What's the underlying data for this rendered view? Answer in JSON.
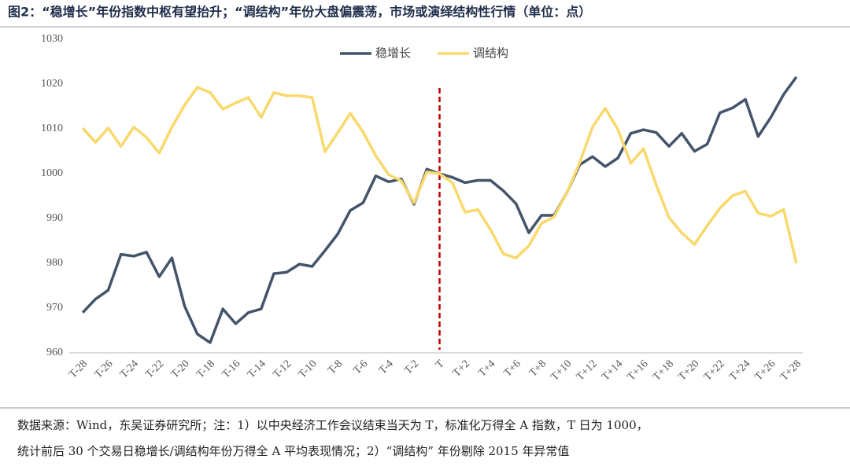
{
  "chart_data": {
    "type": "line",
    "title": "图2：“稳增长”年份指数中枢有望抬升；“调结构”年份大盘偏震荡，市场或演绎结构性行情（单位：点）",
    "source": [
      "数据来源：Wind，东吴证券研究所；注：1）以中央经济工作会议结束当天为 T，标准化万得全 A 指数，T 日为 1000，",
      "统计前后 30 个交易日稳增长/调结构年份万得全 A 平均表现情况；2）“调结构” 年份剔除 2015 年异常值"
    ],
    "categories": [
      "T-28",
      null,
      "T-26",
      null,
      "T-24",
      null,
      "T-22",
      null,
      "T-20",
      null,
      "T-18",
      null,
      "T-16",
      null,
      "T-14",
      null,
      "T-12",
      null,
      "T-10",
      null,
      "T-8",
      null,
      "T-6",
      null,
      "T-4",
      null,
      "T-2",
      null,
      "T",
      null,
      "T+2",
      null,
      "T+4",
      null,
      "T+6",
      null,
      "T+8",
      null,
      "T+10",
      null,
      "T+12",
      null,
      "T+14",
      null,
      "T+16",
      null,
      "T+18",
      null,
      "T+20",
      null,
      "T+22",
      null,
      "T+24",
      null,
      "T+26",
      null,
      "T+28"
    ],
    "series": [
      {
        "name": "稳增长",
        "color": "#44546a",
        "values": [
          969,
          972,
          974,
          982,
          981.6,
          982.5,
          977,
          981.2,
          970.4,
          964.2,
          962.3,
          969.8,
          966.5,
          969,
          969.8,
          977.7,
          978,
          979.8,
          979.3,
          982.8,
          986.5,
          991.8,
          993.5,
          999.5,
          998.2,
          998.8,
          993.2,
          1001,
          1000,
          999.2,
          998,
          998.5,
          998.5,
          996.2,
          993.3,
          986.8,
          990.7,
          990.7,
          995.8,
          1002,
          1003.8,
          1001.6,
          1003.5,
          1009,
          1009.8,
          1009.2,
          1006.1,
          1009,
          1005,
          1006.6,
          1013.6,
          1014.7,
          1016.6,
          1008.3,
          1012.6,
          1017.7,
          1021.6
        ]
      },
      {
        "name": "调结构",
        "color": "#f9d96b",
        "values": [
          1010.2,
          1007,
          1010.2,
          1006.1,
          1010.4,
          1008.1,
          1004.6,
          1010.4,
          1015.3,
          1019.3,
          1018.1,
          1014.4,
          1015.8,
          1017,
          1012.6,
          1018.1,
          1017.4,
          1017.4,
          1017,
          1004.9,
          1009.1,
          1013.5,
          1009.3,
          1004,
          999.8,
          998.4,
          993.5,
          1000.4,
          1000,
          998,
          991.4,
          992,
          987.5,
          982.1,
          981.2,
          983.9,
          988.9,
          990.4,
          995.8,
          1002.5,
          1010.4,
          1014.6,
          1009.8,
          1002.3,
          1005.6,
          997.5,
          990.2,
          986.8,
          984.2,
          988.4,
          992.3,
          995.1,
          996.1,
          991.2,
          990.5,
          992,
          980
        ]
      }
    ],
    "ylim": [
      960,
      1030
    ],
    "yticks": [
      960,
      970,
      980,
      990,
      1000,
      1010,
      1020,
      1030
    ],
    "grid": false,
    "legend": "top"
  }
}
